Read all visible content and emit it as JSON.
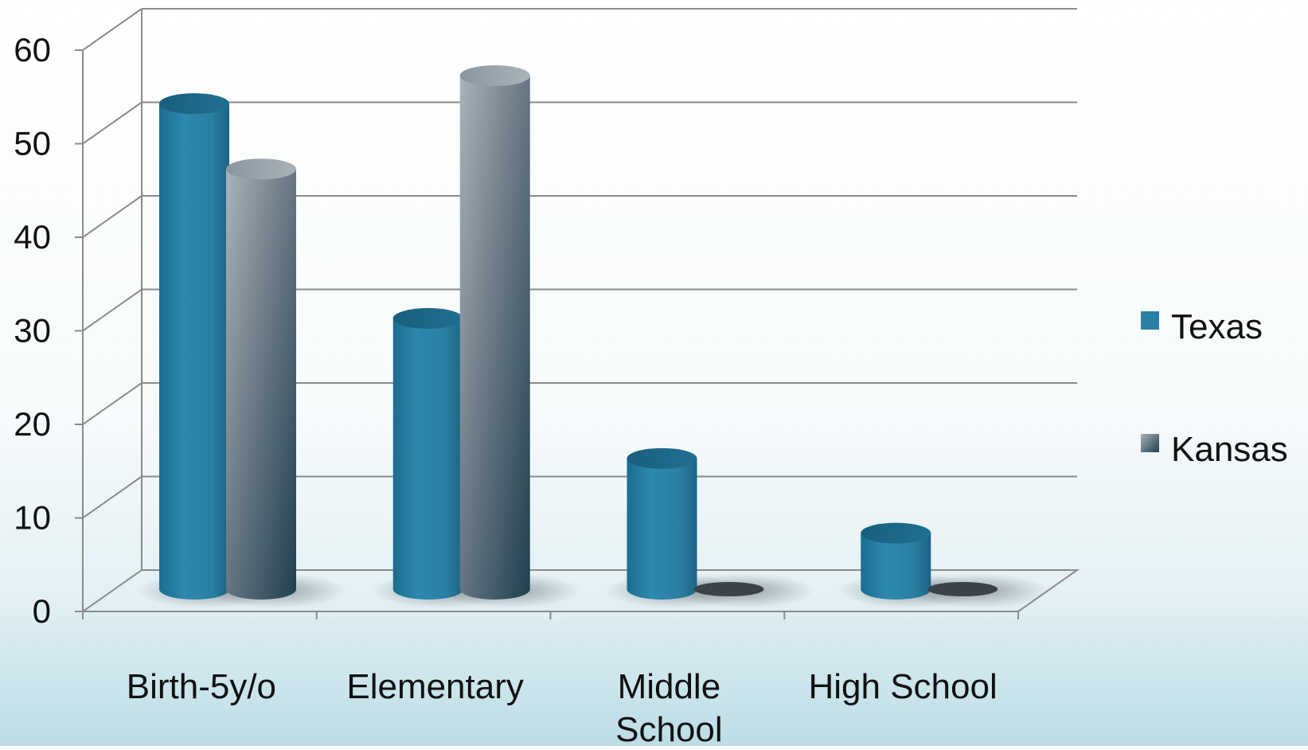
{
  "chart_data": {
    "type": "bar",
    "title": "",
    "xlabel": "",
    "ylabel": "",
    "categories": [
      "Birth-5y/o",
      "Elementary",
      "Middle School",
      "High School"
    ],
    "series": [
      {
        "name": "Texas",
        "values": [
          52,
          29,
          14,
          6
        ],
        "color": "#2a7fa3"
      },
      {
        "name": "Kansas",
        "values": [
          45,
          55,
          0,
          0
        ],
        "color": "#7e8c96"
      }
    ],
    "ylim": [
      0,
      60
    ],
    "yticks": [
      0,
      10,
      20,
      30,
      40,
      50,
      60
    ],
    "grid": true,
    "legend": "right",
    "style": "3d-cylinder"
  }
}
